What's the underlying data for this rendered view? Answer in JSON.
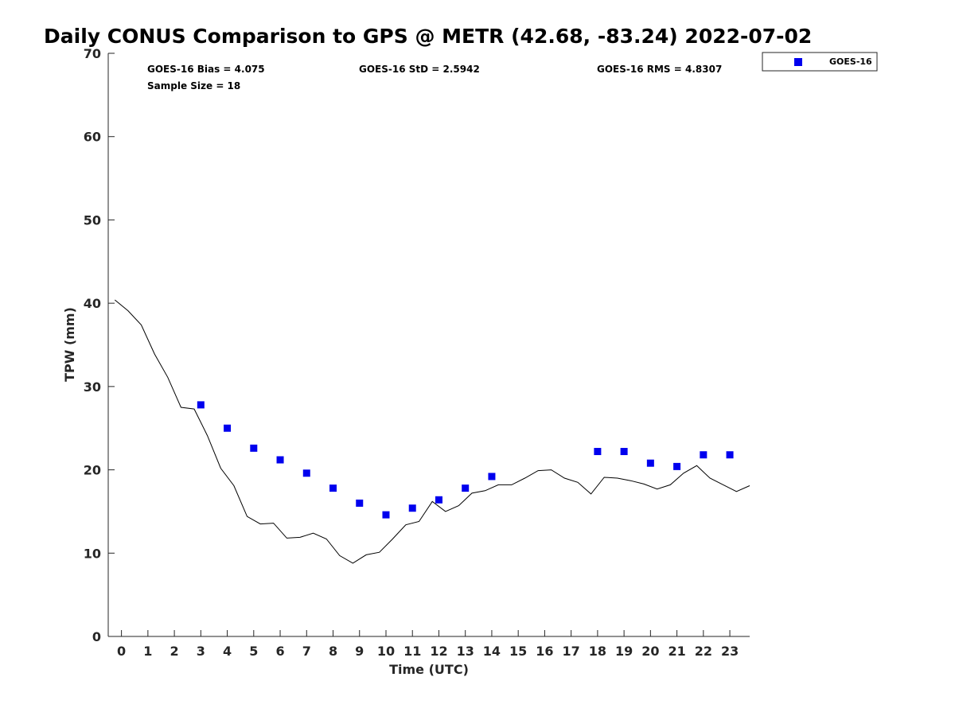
{
  "chart_data": {
    "type": "scatter",
    "title": "Daily CONUS Comparison to GPS @ METR (42.68, -83.24) 2022-07-02",
    "xlabel": "Time (UTC)",
    "ylabel": "TPW (mm)",
    "xlim": [
      -0.5,
      23.75
    ],
    "ylim": [
      0,
      70
    ],
    "x_ticks": [
      0,
      1,
      2,
      3,
      4,
      5,
      6,
      7,
      8,
      9,
      10,
      11,
      12,
      13,
      14,
      15,
      16,
      17,
      18,
      19,
      20,
      21,
      22,
      23
    ],
    "y_ticks": [
      0,
      10,
      20,
      30,
      40,
      50,
      60,
      70
    ],
    "grid": false,
    "legend_position": "top-right, outside plot",
    "stats": {
      "bias": "GOES-16 Bias = 4.075",
      "std": "GOES-16 StD = 2.5942",
      "rms": "GOES-16 RMS = 4.8307",
      "sample_size": "Sample Size = 18"
    },
    "series": [
      {
        "name": "GOES-16",
        "kind": "markers",
        "color": "#0000ee",
        "x": [
          3,
          4,
          5,
          6,
          7,
          8,
          9,
          10,
          11,
          12,
          13,
          14,
          18,
          19,
          20,
          21,
          22,
          23
        ],
        "y": [
          27.8,
          25.0,
          22.6,
          21.2,
          19.6,
          17.8,
          16.0,
          14.6,
          15.4,
          16.4,
          17.8,
          19.2,
          22.2,
          22.2,
          20.8,
          20.4,
          21.8,
          21.8
        ]
      },
      {
        "kind": "line",
        "color": "#000000",
        "x": [
          -0.25,
          0.25,
          0.75,
          1.25,
          1.75,
          2.25,
          2.75,
          3.25,
          3.75,
          4.25,
          4.75,
          5.25,
          5.75,
          6.25,
          6.75,
          7.25,
          7.75,
          8.25,
          8.75,
          9.25,
          9.75,
          10.25,
          10.75,
          11.25,
          11.75,
          12.25,
          12.75,
          13.25,
          13.75,
          14.25,
          14.75,
          15.25,
          15.75,
          16.25,
          16.75,
          17.25,
          17.75,
          18.25,
          18.75,
          19.25,
          19.75,
          20.25,
          20.75,
          21.25,
          21.75,
          22.25,
          22.75,
          23.25,
          23.75
        ],
        "y": [
          40.4,
          39.1,
          37.4,
          33.9,
          31.1,
          27.5,
          27.3,
          24.1,
          20.2,
          18.1,
          14.4,
          13.5,
          13.6,
          11.8,
          11.9,
          12.4,
          11.7,
          9.7,
          8.8,
          9.8,
          10.1,
          11.7,
          13.4,
          13.8,
          16.2,
          15.0,
          15.7,
          17.2,
          17.5,
          18.2,
          18.2,
          19.0,
          19.9,
          20.0,
          19.0,
          18.5,
          17.1,
          19.1,
          19.0,
          18.7,
          18.3,
          17.7,
          18.2,
          19.6,
          20.5,
          19.0,
          18.2,
          17.4,
          18.1
        ]
      }
    ]
  }
}
